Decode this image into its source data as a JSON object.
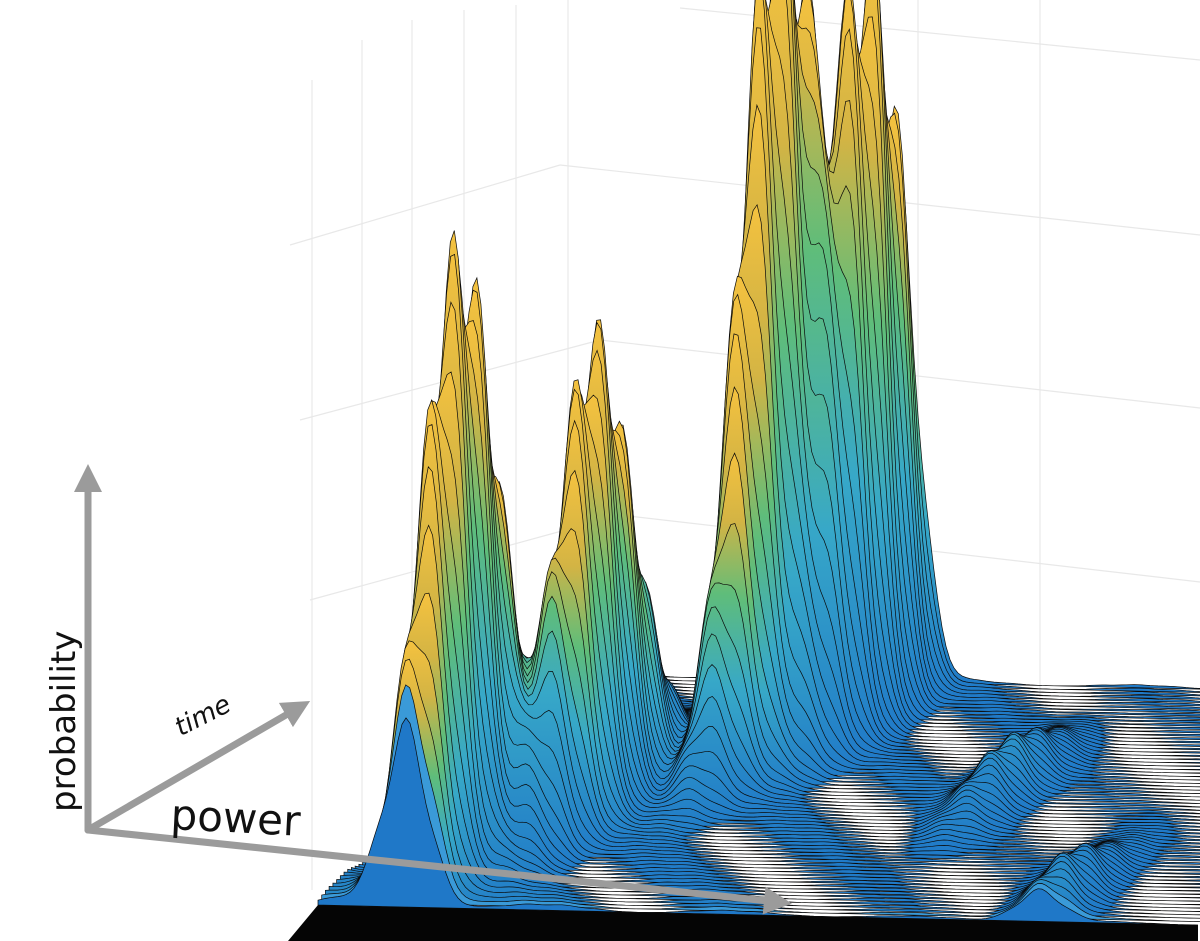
{
  "chart_data": {
    "type": "surface",
    "axis_labels": {
      "x": "power",
      "y": "time",
      "z": "probability"
    },
    "grid": true,
    "colormap": [
      "#1f78c8",
      "#3a9ad8",
      "#35b6a0",
      "#7fbf5a",
      "#c8bc45",
      "#f2a93b",
      "#f7d84a"
    ],
    "peaks_relative": [
      {
        "power": 0.1,
        "time": 0.2,
        "height": 0.72
      },
      {
        "power": 0.18,
        "time": 0.45,
        "height": 0.55
      },
      {
        "power": 0.3,
        "time": 0.75,
        "height": 1.0
      },
      {
        "power": 0.36,
        "time": 0.9,
        "height": 0.86
      },
      {
        "power": 0.62,
        "time": 0.55,
        "height": 0.06
      },
      {
        "power": 0.82,
        "time": 0.1,
        "height": 0.05
      }
    ]
  }
}
